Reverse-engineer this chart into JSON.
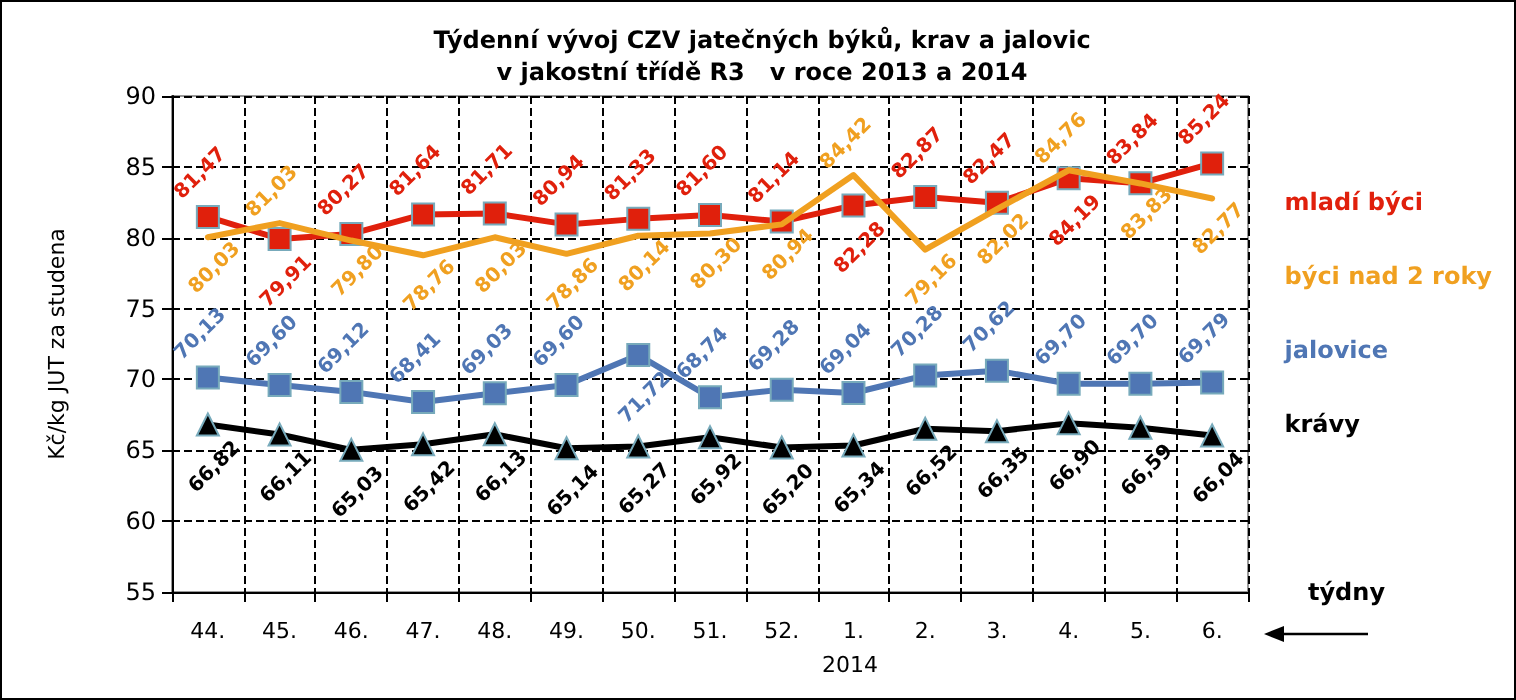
{
  "chart_data": {
    "type": "line",
    "title": "Týdenní vývoj CZV jatečných býků, krav a jalovic\nv jakostní třídě R3   v roce 2013 a 2014",
    "ylabel": "Kč/kg JUT za studena",
    "xlabel": "týdny",
    "annotations": [
      "2014"
    ],
    "categories": [
      "44.",
      "45.",
      "46.",
      "47.",
      "48.",
      "49.",
      "50.",
      "51.",
      "52.",
      "1.",
      "2.",
      "3.",
      "4.",
      "5.",
      "6."
    ],
    "series": [
      {
        "name": "mladí býci",
        "color": "#e0200c",
        "marker": "square",
        "values": [
          81.47,
          79.91,
          80.27,
          81.64,
          81.71,
          80.94,
          81.33,
          81.6,
          81.14,
          82.28,
          82.87,
          82.47,
          84.19,
          83.84,
          85.24
        ],
        "value_labels": [
          "81,47",
          "79,91",
          "80,27",
          "81,64",
          "81,71",
          "80,94",
          "81,33",
          "81,60",
          "81,14",
          "82,28",
          "82,87",
          "82,47",
          "84,19",
          "83,84",
          "85,24"
        ]
      },
      {
        "name": "býci nad 2 roky",
        "color": "#f0a020",
        "marker": "none",
        "values": [
          80.03,
          81.03,
          79.8,
          78.76,
          80.03,
          78.86,
          80.14,
          80.3,
          80.94,
          84.42,
          79.16,
          82.02,
          84.76,
          83.83,
          82.77
        ],
        "value_labels": [
          "80,03",
          "81,03",
          "79,80",
          "78,76",
          "80,03",
          "78,86",
          "80,14",
          "80,30",
          "80,94",
          "84,42",
          "79,16",
          "82,02",
          "84,76",
          "83,83",
          "82,77"
        ]
      },
      {
        "name": "jalovice",
        "color": "#4f76b4",
        "marker": "square",
        "values": [
          70.13,
          69.6,
          69.12,
          68.41,
          69.03,
          69.6,
          71.72,
          68.74,
          69.28,
          69.04,
          70.28,
          70.62,
          69.7,
          69.7,
          69.79
        ],
        "value_labels": [
          "70,13",
          "69,60",
          "69,12",
          "68,41",
          "69,03",
          "69,60",
          "71,72",
          "68,74",
          "69,28",
          "69,04",
          "70,28",
          "70,62",
          "69,70",
          "69,70",
          "69,79"
        ]
      },
      {
        "name": "krávy",
        "color": "#000000",
        "marker": "triangle",
        "values": [
          66.82,
          66.11,
          65.03,
          65.42,
          66.13,
          65.14,
          65.27,
          65.92,
          65.2,
          65.34,
          66.52,
          66.35,
          66.9,
          66.59,
          66.04
        ],
        "value_labels": [
          "66,82",
          "66,11",
          "65,03",
          "65,42",
          "66,13",
          "65,14",
          "65,27",
          "65,92",
          "65,20",
          "65,34",
          "66,52",
          "66,35",
          "66,90",
          "66,59",
          "66,04"
        ]
      }
    ],
    "ylim": [
      55,
      90
    ],
    "yticks": [
      55,
      60,
      65,
      70,
      75,
      80,
      85,
      90
    ],
    "grid": true,
    "legend": "right",
    "line_style": "solid"
  }
}
